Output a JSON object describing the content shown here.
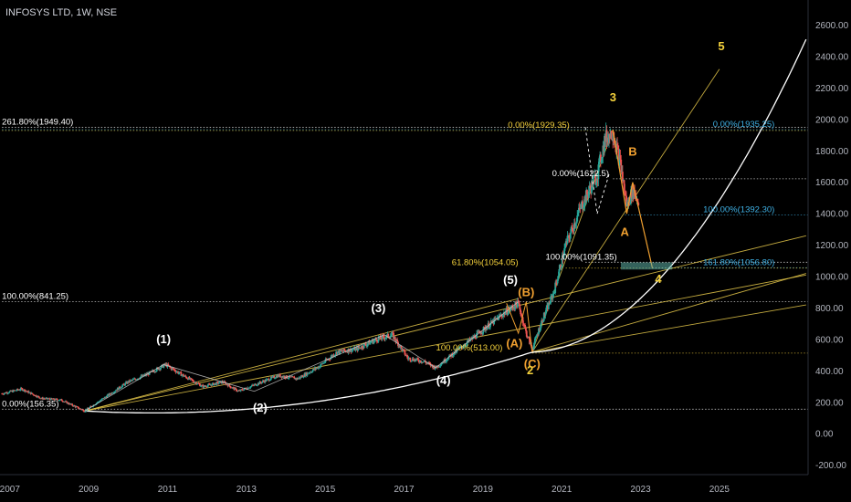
{
  "header": {
    "symbol_line": "INFOSYS LTD, 1W, NSE"
  },
  "colors": {
    "background": "#000000",
    "axis_text": "#b2b5be",
    "candle_up": "#26a69a",
    "candle_down": "#ef5350",
    "wave_white": "#ffffff",
    "wave_yellow": "#f5d23c",
    "wave_orange": "#f0a030",
    "trend_line": "#e6c84a",
    "fib_cyan": "#3fb1e5",
    "fib_white": "#ffffff",
    "curve": "#ffffff",
    "teal_box": "#5fb3a8"
  },
  "chart_data": {
    "type": "candlestick",
    "title": "INFOSYS LTD, 1W, NSE",
    "x_ticks": [
      "2007",
      "2009",
      "2011",
      "2013",
      "2015",
      "2017",
      "2019",
      "2021",
      "2023",
      "2025"
    ],
    "y_ticks": [
      "2600.00",
      "2400.00",
      "2200.00",
      "2000.00",
      "1800.00",
      "1600.00",
      "1400.00",
      "1200.00",
      "1000.00",
      "800.00",
      "600.00",
      "400.00",
      "200.00",
      "0.00",
      "-200.00"
    ],
    "ylim": [
      -260,
      2760
    ],
    "xlim": [
      2006.75,
      2027.25
    ],
    "price_path": [
      [
        2006.8,
        255
      ],
      [
        2007.3,
        285
      ],
      [
        2007.8,
        225
      ],
      [
        2008.3,
        215
      ],
      [
        2008.9,
        145
      ],
      [
        2009.4,
        230
      ],
      [
        2010.0,
        330
      ],
      [
        2010.5,
        380
      ],
      [
        2010.95,
        440
      ],
      [
        2011.4,
        370
      ],
      [
        2011.9,
        300
      ],
      [
        2012.4,
        330
      ],
      [
        2012.8,
        270
      ],
      [
        2013.3,
        320
      ],
      [
        2013.8,
        370
      ],
      [
        2014.3,
        350
      ],
      [
        2014.8,
        420
      ],
      [
        2015.3,
        520
      ],
      [
        2015.8,
        540
      ],
      [
        2016.3,
        600
      ],
      [
        2016.7,
        630
      ],
      [
        2017.1,
        480
      ],
      [
        2017.5,
        460
      ],
      [
        2017.8,
        420
      ],
      [
        2018.2,
        500
      ],
      [
        2018.7,
        600
      ],
      [
        2019.1,
        680
      ],
      [
        2019.5,
        760
      ],
      [
        2019.9,
        830
      ],
      [
        2020.1,
        640
      ],
      [
        2020.25,
        540
      ],
      [
        2020.5,
        720
      ],
      [
        2020.8,
        900
      ],
      [
        2021.1,
        1200
      ],
      [
        2021.5,
        1450
      ],
      [
        2021.9,
        1650
      ],
      [
        2022.1,
        1880
      ],
      [
        2022.3,
        1920
      ],
      [
        2022.5,
        1700
      ],
      [
        2022.65,
        1450
      ],
      [
        2022.8,
        1550
      ],
      [
        2022.95,
        1480
      ]
    ],
    "horizontal_levels": [
      {
        "price": 1949.4,
        "label": "261.80%(1949.40)",
        "color": "fib_white"
      },
      {
        "price": 1929.35,
        "label": "0.00%(1929.35)",
        "color": "wave_yellow"
      },
      {
        "price": 1935.25,
        "label": "0.00%(1935.25)",
        "color": "fib_cyan"
      },
      {
        "price": 1622.5,
        "label": "0.00%(1622.5)",
        "color": "fib_white"
      },
      {
        "price": 1392.3,
        "label": "100.00%(1392.30)",
        "color": "fib_cyan"
      },
      {
        "price": 1091.35,
        "label": "100.00%(1091.35)",
        "color": "fib_white"
      },
      {
        "price": 1056.8,
        "label": "161.80%(1056.80)",
        "color": "fib_cyan"
      },
      {
        "price": 1054.05,
        "label": "61.80%(1054.05)",
        "color": "wave_yellow"
      },
      {
        "price": 841.25,
        "label": "100.00%(841.25)",
        "color": "fib_white"
      },
      {
        "price": 513.0,
        "label": "100.00%(513.00)",
        "color": "wave_yellow"
      },
      {
        "price": 156.35,
        "label": "0.00%(156.35)",
        "color": "fib_white"
      }
    ],
    "wave_labels": [
      {
        "text": "(1)",
        "x": 2010.9,
        "y": 575,
        "color": "wave_white"
      },
      {
        "text": "(2)",
        "x": 2013.35,
        "y": 140,
        "color": "wave_white"
      },
      {
        "text": "(3)",
        "x": 2016.35,
        "y": 775,
        "color": "wave_white"
      },
      {
        "text": "(4)",
        "x": 2018.0,
        "y": 315,
        "color": "wave_white"
      },
      {
        "text": "(5)",
        "x": 2019.7,
        "y": 955,
        "color": "wave_white"
      },
      {
        "text": "(B)",
        "x": 2020.1,
        "y": 875,
        "color": "wave_orange"
      },
      {
        "text": "(A)",
        "x": 2019.8,
        "y": 550,
        "color": "wave_orange"
      },
      {
        "text": "(C)",
        "x": 2020.25,
        "y": 420,
        "color": "wave_orange"
      },
      {
        "text": "2",
        "x": 2020.2,
        "y": 380,
        "color": "wave_yellow"
      },
      {
        "text": "3",
        "x": 2022.3,
        "y": 2115,
        "color": "wave_yellow"
      },
      {
        "text": "B",
        "x": 2022.8,
        "y": 1770,
        "color": "wave_orange"
      },
      {
        "text": "A",
        "x": 2022.6,
        "y": 1260,
        "color": "wave_orange"
      },
      {
        "text": "4",
        "x": 2023.45,
        "y": 960,
        "color": "wave_yellow"
      },
      {
        "text": "5",
        "x": 2025.05,
        "y": 2440,
        "color": "wave_yellow"
      }
    ]
  }
}
